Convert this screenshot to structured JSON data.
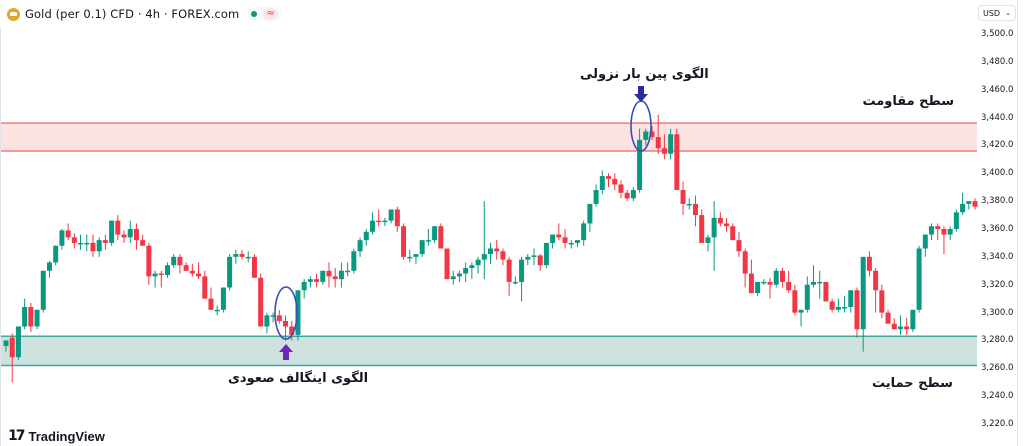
{
  "header": {
    "title": "Gold (per 0.1) CFD · 4h · FOREX.com",
    "status_icon": "market-open-dot",
    "approx_icon": "≈"
  },
  "currency_selector": {
    "label": "USD",
    "icon": "chevron-down-icon"
  },
  "branding": {
    "logo_mark": "17",
    "logo_text": "TradingView"
  },
  "annotations": {
    "resistance_label": "سطح مقاومت",
    "support_label": "سطح حمایت",
    "pinbar_label": "الگوی پین بار نزولی",
    "engulfing_label": "الگوی اینگالف صعودی"
  },
  "colors": {
    "up": "#089981",
    "down": "#f23645",
    "resistance_fill": "#fde2e2",
    "resistance_line": "#ef7b7b",
    "support_fill": "#cfe2df",
    "support_line": "#3bab9a",
    "ellipse": "#3b4fb8",
    "pinbar_arrow": "#2a2a9a",
    "engulf_arrow": "#6a2cb8"
  },
  "chart_data": {
    "type": "candlestick",
    "title": "Gold (per 0.1) CFD · 4h · FOREX.com",
    "xlabel": "",
    "ylabel": "USD",
    "ylim": [
      3210,
      3510
    ],
    "yticks": [
      3500,
      3480,
      3460,
      3440,
      3420,
      3400,
      3380,
      3360,
      3340,
      3320,
      3300,
      3280,
      3260,
      3240,
      3220
    ],
    "ytick_labels": [
      "3,500.0",
      "3,480.0",
      "3,460.0",
      "3,440.0",
      "3,420.0",
      "3,400.0",
      "3,380.0",
      "3,360.0",
      "3,340.0",
      "3,320.0",
      "3,300.0",
      "3,280.0",
      "3,260.0",
      "3,240.0",
      "3,220.0"
    ],
    "zones": [
      {
        "name": "resistance",
        "label": "سطح مقاومت",
        "from": 3416,
        "to": 3436
      },
      {
        "name": "support",
        "label": "سطح حمایت",
        "from": 3262,
        "to": 3283
      }
    ],
    "candles_ohlc": [
      [
        3276,
        3280,
        3272,
        3280
      ],
      [
        3282,
        3285,
        3250,
        3268
      ],
      [
        3268,
        3290,
        3266,
        3290
      ],
      [
        3290,
        3310,
        3288,
        3304
      ],
      [
        3304,
        3307,
        3286,
        3290
      ],
      [
        3290,
        3302,
        3288,
        3302
      ],
      [
        3302,
        3330,
        3300,
        3330
      ],
      [
        3330,
        3337,
        3325,
        3336
      ],
      [
        3336,
        3348,
        3334,
        3348
      ],
      [
        3348,
        3360,
        3345,
        3359
      ],
      [
        3359,
        3364,
        3352,
        3354
      ],
      [
        3354,
        3357,
        3346,
        3350
      ],
      [
        3350,
        3356,
        3345,
        3350
      ],
      [
        3350,
        3356,
        3344,
        3350
      ],
      [
        3350,
        3356,
        3340,
        3344
      ],
      [
        3344,
        3354,
        3340,
        3352
      ],
      [
        3352,
        3356,
        3345,
        3350
      ],
      [
        3350,
        3365,
        3348,
        3366
      ],
      [
        3366,
        3370,
        3352,
        3356
      ],
      [
        3356,
        3359,
        3350,
        3354
      ],
      [
        3354,
        3366,
        3350,
        3360
      ],
      [
        3360,
        3364,
        3345,
        3352
      ],
      [
        3352,
        3356,
        3350,
        3348
      ],
      [
        3348,
        3350,
        3320,
        3326
      ],
      [
        3326,
        3330,
        3318,
        3328
      ],
      [
        3328,
        3330,
        3318,
        3327
      ],
      [
        3327,
        3336,
        3325,
        3334
      ],
      [
        3334,
        3342,
        3332,
        3340
      ],
      [
        3340,
        3342,
        3328,
        3334
      ],
      [
        3334,
        3336,
        3330,
        3330
      ],
      [
        3330,
        3335,
        3326,
        3328
      ],
      [
        3328,
        3336,
        3324,
        3326
      ],
      [
        3326,
        3330,
        3312,
        3310
      ],
      [
        3310,
        3318,
        3305,
        3302
      ],
      [
        3302,
        3305,
        3298,
        3302
      ],
      [
        3302,
        3318,
        3300,
        3318
      ],
      [
        3318,
        3342,
        3316,
        3340
      ],
      [
        3340,
        3345,
        3335,
        3342
      ],
      [
        3342,
        3345,
        3338,
        3340
      ],
      [
        3340,
        3344,
        3336,
        3340
      ],
      [
        3340,
        3342,
        3325,
        3325
      ],
      [
        3325,
        3328,
        3290,
        3290
      ],
      [
        3290,
        3300,
        3285,
        3298
      ],
      [
        3298,
        3300,
        3293,
        3298
      ],
      [
        3298,
        3302,
        3292,
        3294
      ],
      [
        3294,
        3298,
        3280,
        3290
      ],
      [
        3290,
        3294,
        3280,
        3284
      ],
      [
        3284,
        3316,
        3280,
        3316
      ],
      [
        3316,
        3324,
        3310,
        3322
      ],
      [
        3322,
        3326,
        3318,
        3324
      ],
      [
        3324,
        3328,
        3318,
        3322
      ],
      [
        3322,
        3330,
        3320,
        3330
      ],
      [
        3330,
        3336,
        3318,
        3326
      ],
      [
        3326,
        3332,
        3318,
        3324
      ],
      [
        3324,
        3336,
        3318,
        3330
      ],
      [
        3330,
        3336,
        3326,
        3330
      ],
      [
        3330,
        3346,
        3328,
        3344
      ],
      [
        3344,
        3354,
        3340,
        3352
      ],
      [
        3352,
        3360,
        3348,
        3358
      ],
      [
        3358,
        3372,
        3356,
        3366
      ],
      [
        3366,
        3374,
        3362,
        3365
      ],
      [
        3365,
        3368,
        3362,
        3366
      ],
      [
        3366,
        3374,
        3364,
        3374
      ],
      [
        3374,
        3376,
        3358,
        3362
      ],
      [
        3362,
        3364,
        3338,
        3340
      ],
      [
        3340,
        3345,
        3336,
        3340
      ],
      [
        3340,
        3342,
        3335,
        3342
      ],
      [
        3342,
        3352,
        3340,
        3352
      ],
      [
        3352,
        3360,
        3348,
        3352
      ],
      [
        3352,
        3362,
        3350,
        3362
      ],
      [
        3362,
        3364,
        3346,
        3346
      ],
      [
        3346,
        3346,
        3326,
        3324
      ],
      [
        3324,
        3330,
        3320,
        3326
      ],
      [
        3326,
        3330,
        3322,
        3328
      ],
      [
        3328,
        3336,
        3322,
        3332
      ],
      [
        3332,
        3336,
        3324,
        3334
      ],
      [
        3334,
        3340,
        3328,
        3338
      ],
      [
        3338,
        3380,
        3324,
        3342
      ],
      [
        3342,
        3350,
        3335,
        3346
      ],
      [
        3346,
        3352,
        3338,
        3344
      ],
      [
        3344,
        3346,
        3334,
        3338
      ],
      [
        3338,
        3340,
        3312,
        3322
      ],
      [
        3322,
        3326,
        3320,
        3322
      ],
      [
        3322,
        3340,
        3308,
        3338
      ],
      [
        3338,
        3342,
        3334,
        3340
      ],
      [
        3340,
        3346,
        3334,
        3341
      ],
      [
        3341,
        3342,
        3330,
        3334
      ],
      [
        3334,
        3350,
        3332,
        3350
      ],
      [
        3350,
        3356,
        3346,
        3356
      ],
      [
        3356,
        3364,
        3352,
        3354
      ],
      [
        3354,
        3360,
        3346,
        3350
      ],
      [
        3350,
        3352,
        3346,
        3350
      ],
      [
        3350,
        3352,
        3347,
        3352
      ],
      [
        3352,
        3366,
        3348,
        3364
      ],
      [
        3364,
        3372,
        3358,
        3378
      ],
      [
        3378,
        3392,
        3376,
        3388
      ],
      [
        3388,
        3402,
        3385,
        3398
      ],
      [
        3398,
        3400,
        3390,
        3396
      ],
      [
        3396,
        3400,
        3388,
        3392
      ],
      [
        3392,
        3395,
        3382,
        3386
      ],
      [
        3386,
        3388,
        3380,
        3382
      ],
      [
        3382,
        3390,
        3380,
        3388
      ],
      [
        3388,
        3432,
        3386,
        3424
      ],
      [
        3424,
        3432,
        3420,
        3430
      ],
      [
        3430,
        3434,
        3424,
        3426
      ],
      [
        3426,
        3442,
        3414,
        3418
      ],
      [
        3418,
        3428,
        3410,
        3414
      ],
      [
        3414,
        3432,
        3410,
        3428
      ],
      [
        3428,
        3432,
        3398,
        3388
      ],
      [
        3388,
        3394,
        3370,
        3378
      ],
      [
        3378,
        3382,
        3374,
        3378
      ],
      [
        3378,
        3384,
        3362,
        3370
      ],
      [
        3370,
        3374,
        3352,
        3350
      ],
      [
        3350,
        3356,
        3344,
        3354
      ],
      [
        3354,
        3380,
        3330,
        3368
      ],
      [
        3368,
        3372,
        3362,
        3364
      ],
      [
        3364,
        3368,
        3358,
        3362
      ],
      [
        3362,
        3364,
        3352,
        3352
      ],
      [
        3352,
        3358,
        3340,
        3344
      ],
      [
        3344,
        3346,
        3318,
        3328
      ],
      [
        3328,
        3338,
        3314,
        3314
      ],
      [
        3314,
        3320,
        3312,
        3322
      ],
      [
        3322,
        3324,
        3320,
        3322
      ],
      [
        3322,
        3325,
        3310,
        3320
      ],
      [
        3320,
        3332,
        3318,
        3330
      ],
      [
        3330,
        3332,
        3318,
        3322
      ],
      [
        3322,
        3330,
        3314,
        3316
      ],
      [
        3316,
        3320,
        3298,
        3300
      ],
      [
        3300,
        3302,
        3290,
        3302
      ],
      [
        3302,
        3326,
        3300,
        3320
      ],
      [
        3320,
        3334,
        3318,
        3322
      ],
      [
        3322,
        3330,
        3310,
        3322
      ],
      [
        3322,
        3322,
        3310,
        3308
      ],
      [
        3308,
        3310,
        3300,
        3302
      ],
      [
        3302,
        3310,
        3300,
        3304
      ],
      [
        3304,
        3312,
        3300,
        3304
      ],
      [
        3304,
        3316,
        3300,
        3316
      ],
      [
        3316,
        3318,
        3282,
        3288
      ],
      [
        3288,
        3328,
        3272,
        3340
      ],
      [
        3340,
        3344,
        3326,
        3330
      ],
      [
        3330,
        3332,
        3300,
        3316
      ],
      [
        3316,
        3320,
        3296,
        3300
      ],
      [
        3300,
        3302,
        3292,
        3292
      ],
      [
        3292,
        3296,
        3288,
        3288
      ],
      [
        3288,
        3298,
        3284,
        3290
      ],
      [
        3290,
        3296,
        3284,
        3288
      ],
      [
        3288,
        3302,
        3286,
        3302
      ],
      [
        3302,
        3348,
        3300,
        3346
      ],
      [
        3346,
        3356,
        3340,
        3356
      ],
      [
        3356,
        3364,
        3352,
        3362
      ],
      [
        3362,
        3364,
        3352,
        3360
      ],
      [
        3360,
        3362,
        3342,
        3356
      ],
      [
        3356,
        3362,
        3352,
        3360
      ],
      [
        3360,
        3374,
        3358,
        3372
      ],
      [
        3372,
        3386,
        3370,
        3378
      ],
      [
        3378,
        3380,
        3374,
        3380
      ],
      [
        3380,
        3382,
        3374,
        3376
      ]
    ]
  }
}
